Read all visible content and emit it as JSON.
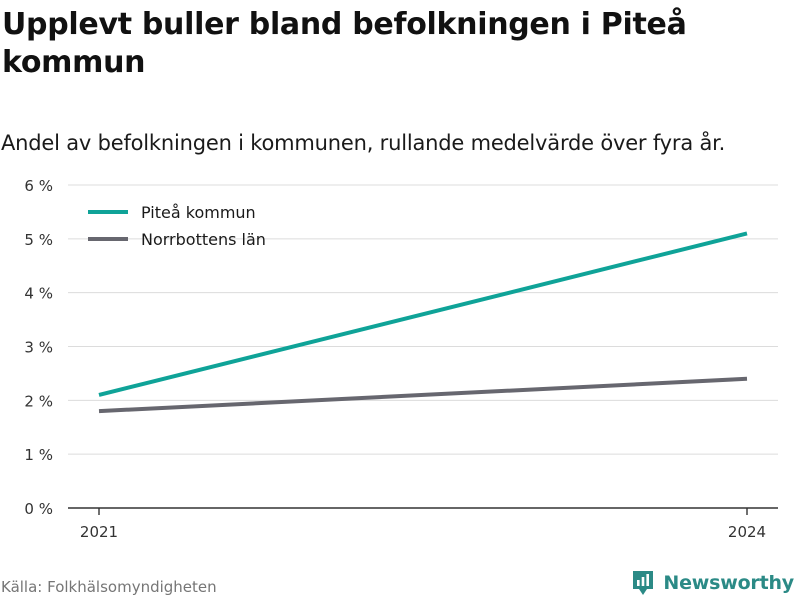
{
  "title": "Upplevt buller bland befolkningen i Piteå kommun",
  "subtitle": "Andel av befolkningen i kommunen, rullande medelvärde över fyra år.",
  "source": "Källa: Folkhälsomyndigheten",
  "brand": {
    "name": "Newsworthy",
    "icon": "newsworthy-logo-icon",
    "color": "#2b8a86"
  },
  "colors": {
    "grid": "#dcdcdc",
    "axis": "#333333",
    "tick_text": "#333333"
  },
  "chart_data": {
    "type": "line",
    "x": [
      2021,
      2024
    ],
    "x_tick_labels": [
      "2021",
      "2024"
    ],
    "series": [
      {
        "name": "Piteå kommun",
        "values": [
          2.1,
          5.1
        ],
        "color": "#0fa398"
      },
      {
        "name": "Norrbottens län",
        "values": [
          1.8,
          2.4
        ],
        "color": "#67676f"
      }
    ],
    "ylim": [
      0,
      6
    ],
    "y_ticks": [
      0,
      1,
      2,
      3,
      4,
      5,
      6
    ],
    "y_tick_labels": [
      "0 %",
      "1 %",
      "2 %",
      "3 %",
      "4 %",
      "5 %",
      "6 %"
    ],
    "xlabel": "",
    "ylabel": "",
    "grid": true,
    "legend_position": "top-left"
  }
}
